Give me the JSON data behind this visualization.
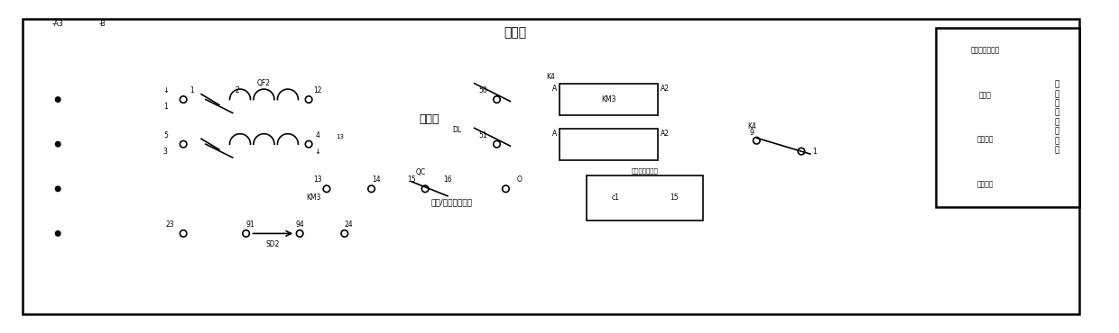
{
  "bg_color": "#ffffff",
  "fig_width": 12.4,
  "fig_height": 3.7,
  "dpi": 100,
  "title_fen": "遥控分",
  "title_he": "遥控合",
  "label_DL": "DL",
  "label_QF2": "QF2",
  "label_KM3_upper": "KM3",
  "label_QC": "QC",
  "label_SD2": "SD2",
  "label_K4": "K4",
  "label_O": "O",
  "label_50": "50",
  "label_51": "51",
  "label_far_near": "远控/近控转换开关",
  "label_energy": "能量存储指示器",
  "label_A1": "A",
  "label_A2": "A2",
  "label_KM3_box": "KM3",
  "table_left_col": [
    "分闸回路",
    "合闸回路",
    "自保持",
    "手动或遥控选择"
  ],
  "table_right_col": "电\n机\n电\n源\n控\n制\n回\n路",
  "rail_left": "-A3",
  "rail_right": "-B",
  "num_1": "1",
  "num_2": "2",
  "num_3": "3",
  "num_4": "4",
  "num_5": "5",
  "num_9": "9",
  "num_12": "12",
  "num_13": "13",
  "num_14": "14",
  "num_15": "15",
  "num_16": "16",
  "num_23": "23",
  "num_24": "24",
  "num_50": "50",
  "num_51": "51",
  "num_91": "91",
  "num_94": "94",
  "num_c1": "c1"
}
